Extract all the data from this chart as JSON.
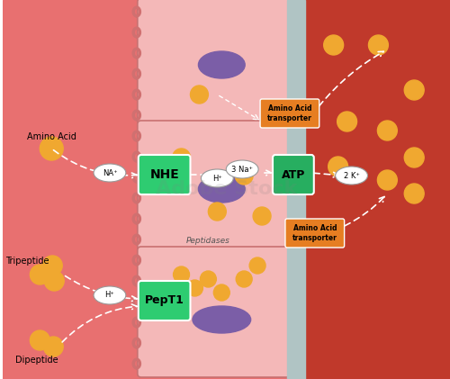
{
  "bg_left_color": "#e87070",
  "bg_right_color": "#c0392b",
  "cell_color": "#f4b8b8",
  "cell_border_color": "#c87070",
  "brush_border_color": "#c87070",
  "cell_wall_color": "#b0c4c4",
  "nucleus_color": "#7b5ea7",
  "amino_acid_color": "#f0a830",
  "nhe_color": "#2ecc71",
  "pept1_color": "#2ecc71",
  "atp_color": "#27ae60",
  "transporter_color": "#e67e22",
  "label_nhe": "NHE",
  "label_pept1": "PepT1",
  "label_atp": "ATP",
  "label_na": "NA⁺",
  "label_h": "H⁺",
  "label_3na": "3 Na⁺",
  "label_2k": "2 K⁺",
  "label_amino_acid": "Amino Acid",
  "label_tripeptide": "Tripeptide",
  "label_dipeptide": "Dipeptide",
  "label_peptidases": "Peptidases",
  "label_amino_transporter": "Amino Acid\ntransporter",
  "white": "#ffffff",
  "black": "#111111",
  "dashed_color": "#ffffff"
}
